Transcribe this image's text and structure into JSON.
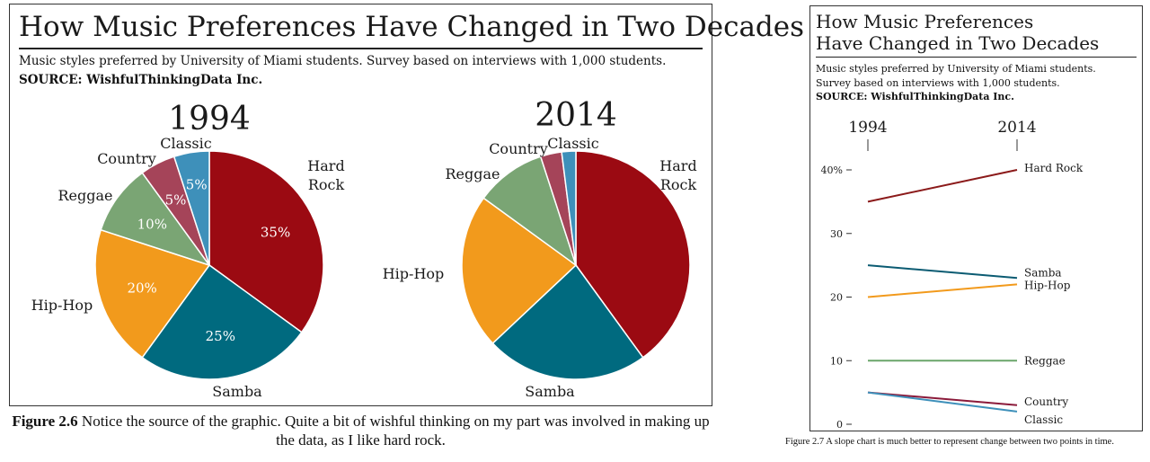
{
  "left": {
    "title": "How Music Preferences Have Changed in Two Decades",
    "subtitle": "Music styles preferred by University of Miami students. Survey based on interviews with 1,000 students.",
    "source": "SOURCE: WishfulThinkingData Inc.",
    "caption_fig": "Figure 2.6",
    "caption_text": " Notice the source of the graphic. Quite a bit of wishful thinking on my part was involved in making up the data, as I like hard rock."
  },
  "right": {
    "title_line1": "How Music Preferences",
    "title_line2": "Have Changed in Two Decades",
    "subtitle": "Music styles preferred by University of Miami students. Survey based on interviews with 1,000 students.",
    "source": "SOURCE: WishfulThinkingData Inc.",
    "caption": "Figure 2.7 A slope chart is much better to represent change between two points in time."
  },
  "chart_data": [
    {
      "type": "pie",
      "title": "1994",
      "categories": [
        "Hard Rock",
        "Samba",
        "Hip-Hop",
        "Reggae",
        "Country",
        "Classic"
      ],
      "values": [
        35,
        25,
        20,
        10,
        5,
        5
      ],
      "labels": [
        "35%",
        "25%",
        "20%",
        "10%",
        "5%",
        "5%"
      ],
      "category_labels": [
        "Hard\nRock",
        "Samba",
        "Hip-Hop",
        "Reggae",
        "Country",
        "Classic"
      ],
      "colors": [
        "#9b0a12",
        "#006a7f",
        "#f29a1c",
        "#7aa574",
        "#a54459",
        "#3e90ba"
      ]
    },
    {
      "type": "pie",
      "title": "2014",
      "categories": [
        "Hard Rock",
        "Samba",
        "Hip-Hop",
        "Reggae",
        "Country",
        "Classic"
      ],
      "values": [
        40,
        23,
        22,
        10,
        3,
        2
      ],
      "category_labels": [
        "Hard\nRock",
        "Samba",
        "Hip-Hop",
        "Reggae",
        "Country",
        "Classic"
      ],
      "colors": [
        "#9b0a12",
        "#006a7f",
        "#f29a1c",
        "#7aa574",
        "#a54459",
        "#3e90ba"
      ]
    },
    {
      "type": "line",
      "subtype": "slope",
      "x": [
        "1994",
        "2014"
      ],
      "yticks": [
        0,
        10,
        20,
        30,
        40
      ],
      "ytick_labels": [
        "0",
        "10",
        "20",
        "30",
        "40%"
      ],
      "ylim": [
        0,
        40
      ],
      "series": [
        {
          "name": "Hard Rock",
          "values": [
            35,
            40
          ],
          "color": "#8b1a1a"
        },
        {
          "name": "Samba",
          "values": [
            25,
            23
          ],
          "color": "#0b5b72"
        },
        {
          "name": "Hip-Hop",
          "values": [
            20,
            22
          ],
          "color": "#f29a1c"
        },
        {
          "name": "Reggae",
          "values": [
            10,
            10
          ],
          "color": "#6aa56a"
        },
        {
          "name": "Country",
          "values": [
            5,
            3
          ],
          "color": "#8b1a3a"
        },
        {
          "name": "Classic",
          "values": [
            5,
            2
          ],
          "color": "#3e90ba"
        }
      ]
    }
  ]
}
